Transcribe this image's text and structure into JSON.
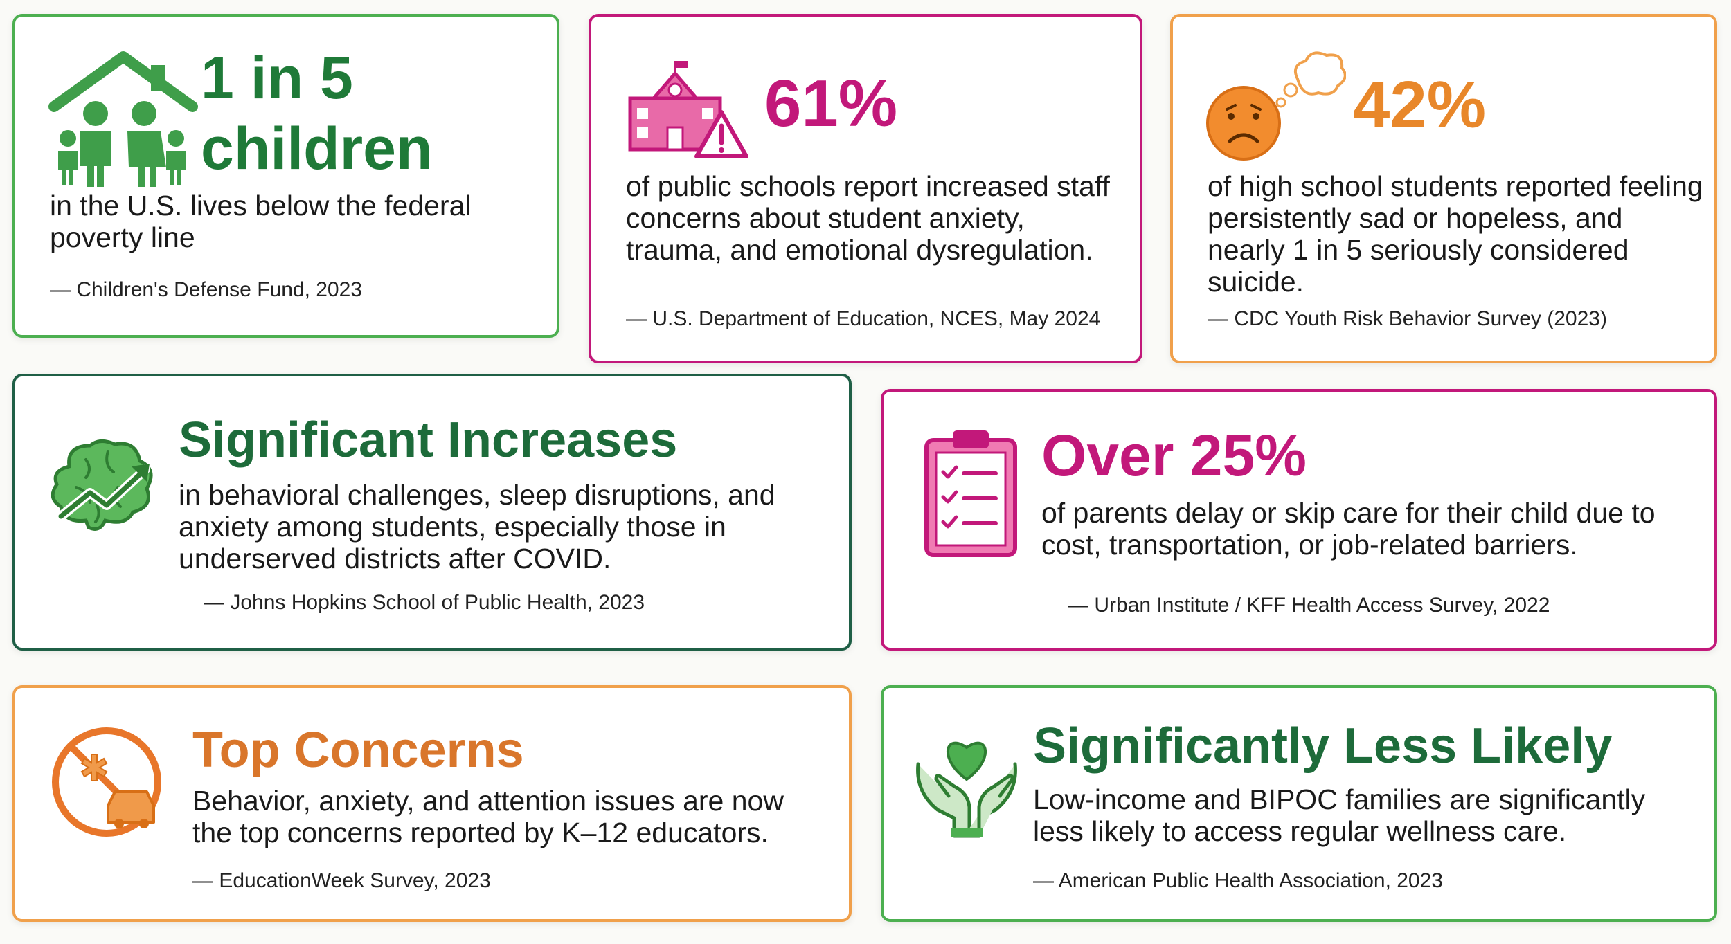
{
  "cards": [
    {
      "id": "poverty",
      "headline_line1": "1 in 5",
      "headline_line2": "children",
      "body": "in the U.S. lives below the federal poverty line",
      "source": "— Children's Defense Fund, 2023",
      "icon": "family-house-icon",
      "accent": "#1f7a38",
      "border": "#4caf50"
    },
    {
      "id": "schools",
      "headline": "61%",
      "body": "of public schools report increased staff concerns about student anxiety, trauma, and emotional dysregulation.",
      "source": "— U.S. Department of Education, NCES, May 2024",
      "icon": "school-warning-icon",
      "accent": "#c2187a",
      "border": "#c2187a"
    },
    {
      "id": "sadness",
      "headline": "42%",
      "body": "of high school students reported feeling persistently sad or hopeless, and nearly 1 in 5 seriously considered suicide.",
      "source": "— CDC Youth Risk Behavior Survey (2023)",
      "icon": "sad-face-thought-icon",
      "accent": "#e8872a",
      "border": "#f0a04b"
    },
    {
      "id": "increases",
      "headline": "Significant Increases",
      "body": "in behavioral challenges, sleep disruptions, and anxiety among students, especially those in underserved districts after COVID.",
      "source": "— Johns Hopkins School of Public Health, 2023",
      "icon": "brain-trend-icon",
      "accent": "#1d6b3a",
      "border": "#1f5f46"
    },
    {
      "id": "parents",
      "headline": "Over 25%",
      "body": "of parents delay or skip care for their child due to cost, transportation, or job-related barriers.",
      "source": "— Urban Institute / KFF Health Access Survey, 2022",
      "icon": "clipboard-checklist-icon",
      "accent": "#c2187a",
      "border": "#c2187a"
    },
    {
      "id": "concerns",
      "headline": "Top Concerns",
      "body": "Behavior, anxiety, and attention issues are now the top concerns reported by K–12 educators.",
      "source": "— EducationWeek Survey, 2023",
      "icon": "no-medical-transport-icon",
      "accent": "#d9762b",
      "border": "#f0a04b"
    },
    {
      "id": "likely",
      "headline": "Significantly Less Likely",
      "body": "Low-income and BIPOC families are significantly less likely to access regular wellness care.",
      "source": "— American Public Health Association, 2023",
      "icon": "hands-heart-icon",
      "accent": "#1d6b3a",
      "border": "#4caf50"
    }
  ]
}
